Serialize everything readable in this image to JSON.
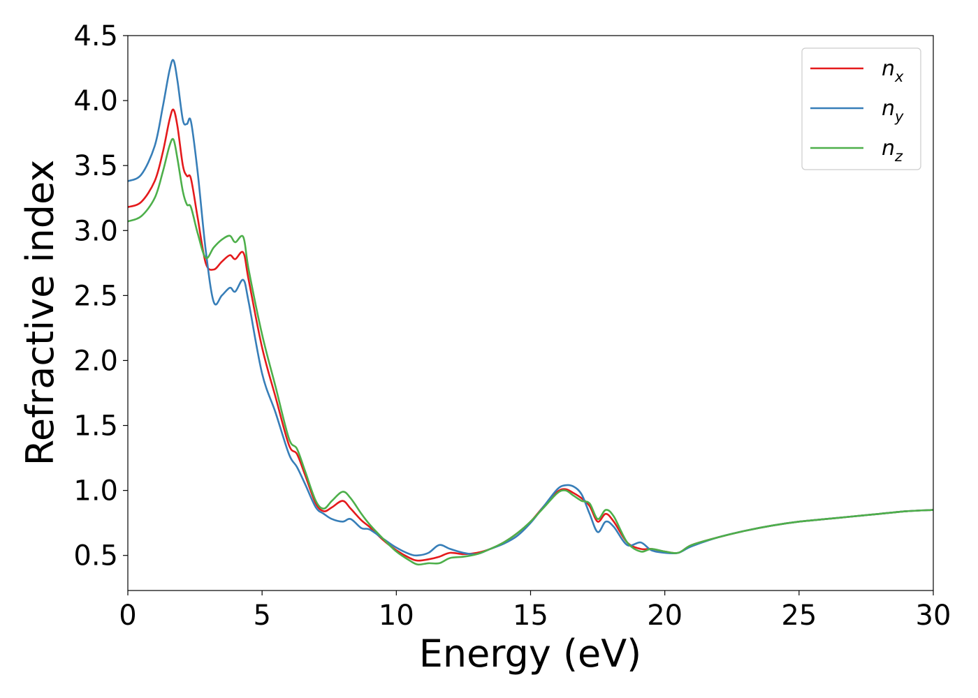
{
  "chart_data": {
    "type": "line",
    "title": "",
    "xlabel": "Energy (eV)",
    "ylabel": "Refractive index",
    "xlim": [
      0,
      30
    ],
    "ylim": [
      0.23,
      4.5
    ],
    "xticks": [
      "0",
      "5",
      "10",
      "15",
      "20",
      "25",
      "30"
    ],
    "yticks": [
      "0.5",
      "1.0",
      "1.5",
      "2.0",
      "2.5",
      "3.0",
      "3.5",
      "4.0",
      "4.5"
    ],
    "grid": false,
    "legend_position": "top-right",
    "series": [
      {
        "name": "n_x",
        "label_base": "n",
        "label_sub": "x",
        "color": "#e41a1c",
        "x": [
          0,
          0.5,
          1.0,
          1.3,
          1.55,
          1.7,
          1.85,
          2.05,
          2.2,
          2.35,
          2.6,
          2.9,
          3.2,
          3.5,
          3.8,
          4.0,
          4.3,
          4.5,
          5.0,
          5.5,
          6.0,
          6.3,
          6.6,
          7.0,
          7.3,
          7.6,
          8.0,
          8.3,
          8.7,
          9.0,
          9.5,
          10.0,
          10.5,
          10.8,
          11.2,
          11.6,
          12.0,
          12.5,
          13.0,
          13.5,
          14.0,
          14.5,
          15.0,
          15.5,
          16.0,
          16.3,
          16.6,
          16.9,
          17.2,
          17.5,
          17.8,
          18.1,
          18.6,
          19.1,
          19.5,
          20.0,
          20.5,
          21.0,
          22.0,
          23.0,
          24.0,
          25.0,
          26.0,
          27.0,
          27.5,
          28.0,
          29.0,
          30.0
        ],
        "y": [
          3.18,
          3.22,
          3.38,
          3.6,
          3.85,
          3.93,
          3.8,
          3.5,
          3.42,
          3.4,
          3.1,
          2.75,
          2.7,
          2.76,
          2.81,
          2.78,
          2.83,
          2.62,
          2.1,
          1.72,
          1.35,
          1.28,
          1.12,
          0.9,
          0.84,
          0.87,
          0.92,
          0.86,
          0.77,
          0.72,
          0.62,
          0.54,
          0.48,
          0.46,
          0.47,
          0.49,
          0.52,
          0.51,
          0.52,
          0.55,
          0.6,
          0.67,
          0.76,
          0.88,
          0.99,
          1.01,
          0.98,
          0.94,
          0.88,
          0.76,
          0.82,
          0.76,
          0.6,
          0.55,
          0.55,
          0.53,
          0.52,
          0.58,
          0.64,
          0.69,
          0.73,
          0.76,
          0.78,
          0.8,
          0.81,
          0.82,
          0.84,
          0.85
        ]
      },
      {
        "name": "n_y",
        "label_base": "n",
        "label_sub": "y",
        "color": "#377eb8",
        "x": [
          0,
          0.5,
          1.0,
          1.3,
          1.55,
          1.7,
          1.85,
          2.05,
          2.2,
          2.35,
          2.6,
          2.9,
          3.2,
          3.5,
          3.8,
          4.0,
          4.3,
          4.5,
          5.0,
          5.5,
          6.0,
          6.3,
          6.6,
          7.0,
          7.3,
          7.6,
          8.0,
          8.3,
          8.7,
          9.0,
          9.5,
          10.0,
          10.5,
          10.8,
          11.2,
          11.6,
          12.0,
          12.5,
          13.0,
          13.5,
          14.0,
          14.5,
          15.0,
          15.5,
          16.0,
          16.3,
          16.6,
          16.9,
          17.2,
          17.5,
          17.8,
          18.1,
          18.6,
          19.1,
          19.5,
          20.0,
          20.5,
          21.0,
          22.0,
          23.0,
          24.0,
          25.0,
          26.0,
          27.0,
          27.5,
          28.0,
          29.0,
          30.0
        ],
        "y": [
          3.38,
          3.43,
          3.65,
          3.95,
          4.23,
          4.31,
          4.15,
          3.85,
          3.82,
          3.84,
          3.45,
          2.85,
          2.45,
          2.5,
          2.56,
          2.53,
          2.62,
          2.45,
          1.9,
          1.6,
          1.28,
          1.18,
          1.05,
          0.87,
          0.82,
          0.78,
          0.76,
          0.78,
          0.71,
          0.7,
          0.63,
          0.56,
          0.51,
          0.5,
          0.52,
          0.58,
          0.55,
          0.52,
          0.51,
          0.55,
          0.59,
          0.65,
          0.75,
          0.88,
          1.01,
          1.04,
          1.03,
          0.97,
          0.82,
          0.68,
          0.76,
          0.72,
          0.58,
          0.6,
          0.54,
          0.52,
          0.52,
          0.57,
          0.64,
          0.69,
          0.73,
          0.76,
          0.78,
          0.8,
          0.81,
          0.82,
          0.84,
          0.85
        ]
      },
      {
        "name": "n_z",
        "label_base": "n",
        "label_sub": "z",
        "color": "#4daf4a",
        "x": [
          0,
          0.5,
          1.0,
          1.3,
          1.55,
          1.7,
          1.85,
          2.05,
          2.2,
          2.35,
          2.6,
          2.9,
          3.2,
          3.5,
          3.8,
          4.0,
          4.3,
          4.5,
          5.0,
          5.5,
          6.0,
          6.3,
          6.6,
          7.0,
          7.3,
          7.6,
          8.0,
          8.3,
          8.7,
          9.0,
          9.5,
          10.0,
          10.5,
          10.8,
          11.2,
          11.6,
          12.0,
          12.5,
          13.0,
          13.5,
          14.0,
          14.5,
          15.0,
          15.5,
          16.0,
          16.3,
          16.6,
          16.9,
          17.2,
          17.5,
          17.8,
          18.1,
          18.6,
          19.1,
          19.5,
          20.0,
          20.5,
          21.0,
          22.0,
          23.0,
          24.0,
          25.0,
          26.0,
          27.0,
          27.5,
          28.0,
          29.0,
          30.0
        ],
        "y": [
          3.07,
          3.11,
          3.25,
          3.45,
          3.65,
          3.7,
          3.55,
          3.3,
          3.2,
          3.18,
          2.98,
          2.79,
          2.87,
          2.93,
          2.96,
          2.91,
          2.95,
          2.7,
          2.2,
          1.8,
          1.4,
          1.32,
          1.15,
          0.92,
          0.86,
          0.92,
          0.99,
          0.94,
          0.82,
          0.74,
          0.63,
          0.53,
          0.46,
          0.43,
          0.44,
          0.44,
          0.48,
          0.49,
          0.51,
          0.55,
          0.6,
          0.67,
          0.76,
          0.87,
          0.98,
          1.0,
          0.96,
          0.92,
          0.9,
          0.78,
          0.85,
          0.8,
          0.6,
          0.53,
          0.55,
          0.53,
          0.52,
          0.58,
          0.64,
          0.69,
          0.73,
          0.76,
          0.78,
          0.8,
          0.81,
          0.82,
          0.84,
          0.85
        ]
      }
    ]
  }
}
